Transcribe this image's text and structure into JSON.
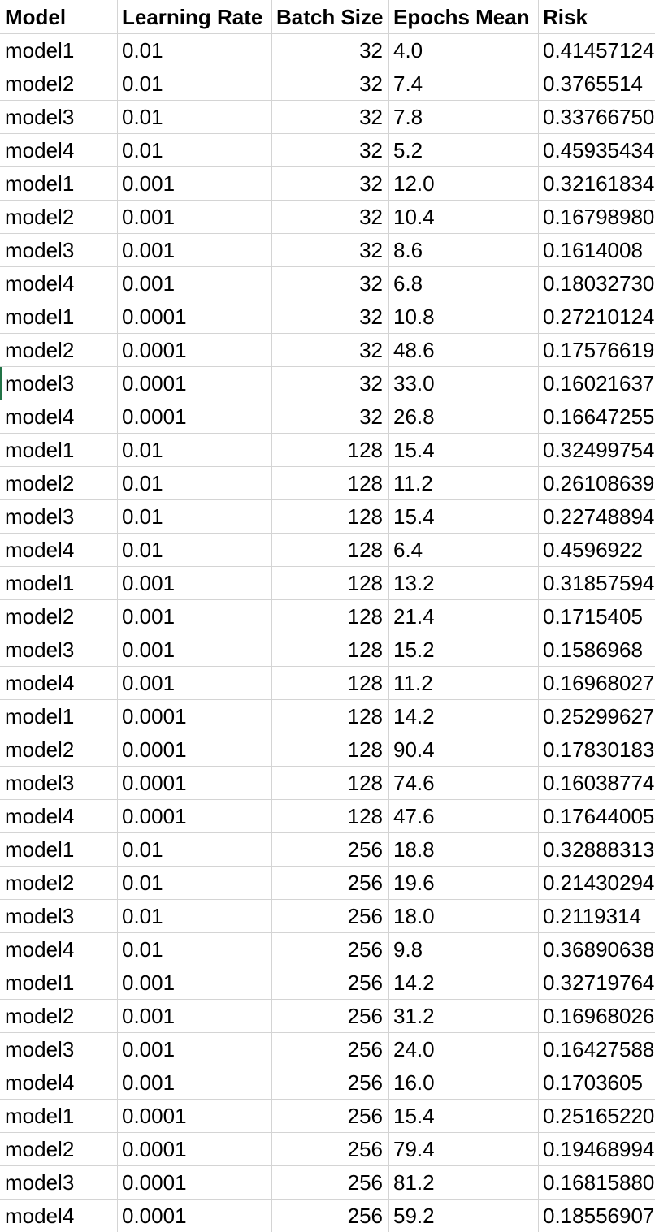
{
  "columns": [
    "Model",
    "Learning Rate",
    "Batch Size",
    "Epochs Mean",
    "Risk"
  ],
  "rows": [
    [
      "model1",
      "0.01",
      "32",
      "4.0",
      "0.41457124"
    ],
    [
      "model2",
      "0.01",
      "32",
      "7.4",
      "0.3765514"
    ],
    [
      "model3",
      "0.01",
      "32",
      "7.8",
      "0.33766750"
    ],
    [
      "model4",
      "0.01",
      "32",
      "5.2",
      "0.45935434"
    ],
    [
      "model1",
      "0.001",
      "32",
      "12.0",
      "0.32161834"
    ],
    [
      "model2",
      "0.001",
      "32",
      "10.4",
      "0.16798980"
    ],
    [
      "model3",
      "0.001",
      "32",
      "8.6",
      "0.1614008"
    ],
    [
      "model4",
      "0.001",
      "32",
      "6.8",
      "0.18032730"
    ],
    [
      "model1",
      "0.0001",
      "32",
      "10.8",
      "0.27210124"
    ],
    [
      "model2",
      "0.0001",
      "32",
      "48.6",
      "0.17576619"
    ],
    [
      "model3",
      "0.0001",
      "32",
      "33.0",
      "0.16021637"
    ],
    [
      "model4",
      "0.0001",
      "32",
      "26.8",
      "0.16647255"
    ],
    [
      "model1",
      "0.01",
      "128",
      "15.4",
      "0.32499754"
    ],
    [
      "model2",
      "0.01",
      "128",
      "11.2",
      "0.26108639"
    ],
    [
      "model3",
      "0.01",
      "128",
      "15.4",
      "0.22748894"
    ],
    [
      "model4",
      "0.01",
      "128",
      "6.4",
      "0.4596922"
    ],
    [
      "model1",
      "0.001",
      "128",
      "13.2",
      "0.31857594"
    ],
    [
      "model2",
      "0.001",
      "128",
      "21.4",
      "0.1715405"
    ],
    [
      "model3",
      "0.001",
      "128",
      "15.2",
      "0.1586968"
    ],
    [
      "model4",
      "0.001",
      "128",
      "11.2",
      "0.16968027"
    ],
    [
      "model1",
      "0.0001",
      "128",
      "14.2",
      "0.25299627"
    ],
    [
      "model2",
      "0.0001",
      "128",
      "90.4",
      "0.17830183"
    ],
    [
      "model3",
      "0.0001",
      "128",
      "74.6",
      "0.16038774"
    ],
    [
      "model4",
      "0.0001",
      "128",
      "47.6",
      "0.17644005"
    ],
    [
      "model1",
      "0.01",
      "256",
      "18.8",
      "0.32888313"
    ],
    [
      "model2",
      "0.01",
      "256",
      "19.6",
      "0.21430294"
    ],
    [
      "model3",
      "0.01",
      "256",
      "18.0",
      "0.2119314"
    ],
    [
      "model4",
      "0.01",
      "256",
      "9.8",
      "0.36890638"
    ],
    [
      "model1",
      "0.001",
      "256",
      "14.2",
      "0.32719764"
    ],
    [
      "model2",
      "0.001",
      "256",
      "31.2",
      "0.16968026"
    ],
    [
      "model3",
      "0.001",
      "256",
      "24.0",
      "0.16427588"
    ],
    [
      "model4",
      "0.001",
      "256",
      "16.0",
      "0.1703605"
    ],
    [
      "model1",
      "0.0001",
      "256",
      "15.4",
      "0.25165220"
    ],
    [
      "model2",
      "0.0001",
      "256",
      "79.4",
      "0.19468994"
    ],
    [
      "model3",
      "0.0001",
      "256",
      "81.2",
      "0.16815880"
    ],
    [
      "model4",
      "0.0001",
      "256",
      "59.2",
      "0.18556907"
    ]
  ],
  "selection_color": "#217346",
  "gridline_color": "#d4d4d4"
}
